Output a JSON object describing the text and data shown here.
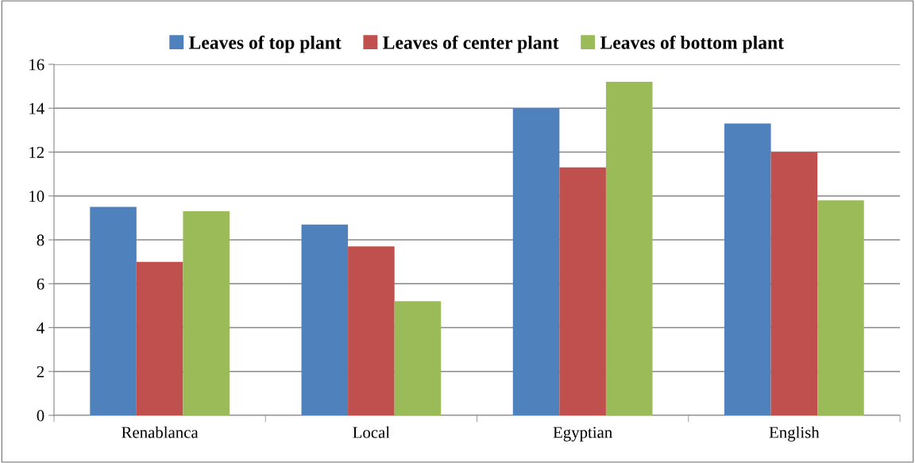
{
  "chart_data": {
    "type": "bar",
    "categories": [
      "Renablanca",
      "Local",
      "Egyptian",
      "English"
    ],
    "series": [
      {
        "name": "Leaves of top plant",
        "color": "#4f81bd",
        "values": [
          9.5,
          8.7,
          14.0,
          13.3
        ]
      },
      {
        "name": "Leaves of center plant",
        "color": "#c0504d",
        "values": [
          7.0,
          7.7,
          11.3,
          12.0
        ]
      },
      {
        "name": "Leaves of bottom plant",
        "color": "#9bbb59",
        "values": [
          9.3,
          5.2,
          15.2,
          9.8
        ]
      }
    ],
    "ylim": [
      0,
      16
    ],
    "yticks": [
      0,
      2,
      4,
      6,
      8,
      10,
      12,
      14,
      16
    ],
    "grid": "y",
    "legend": "top"
  }
}
